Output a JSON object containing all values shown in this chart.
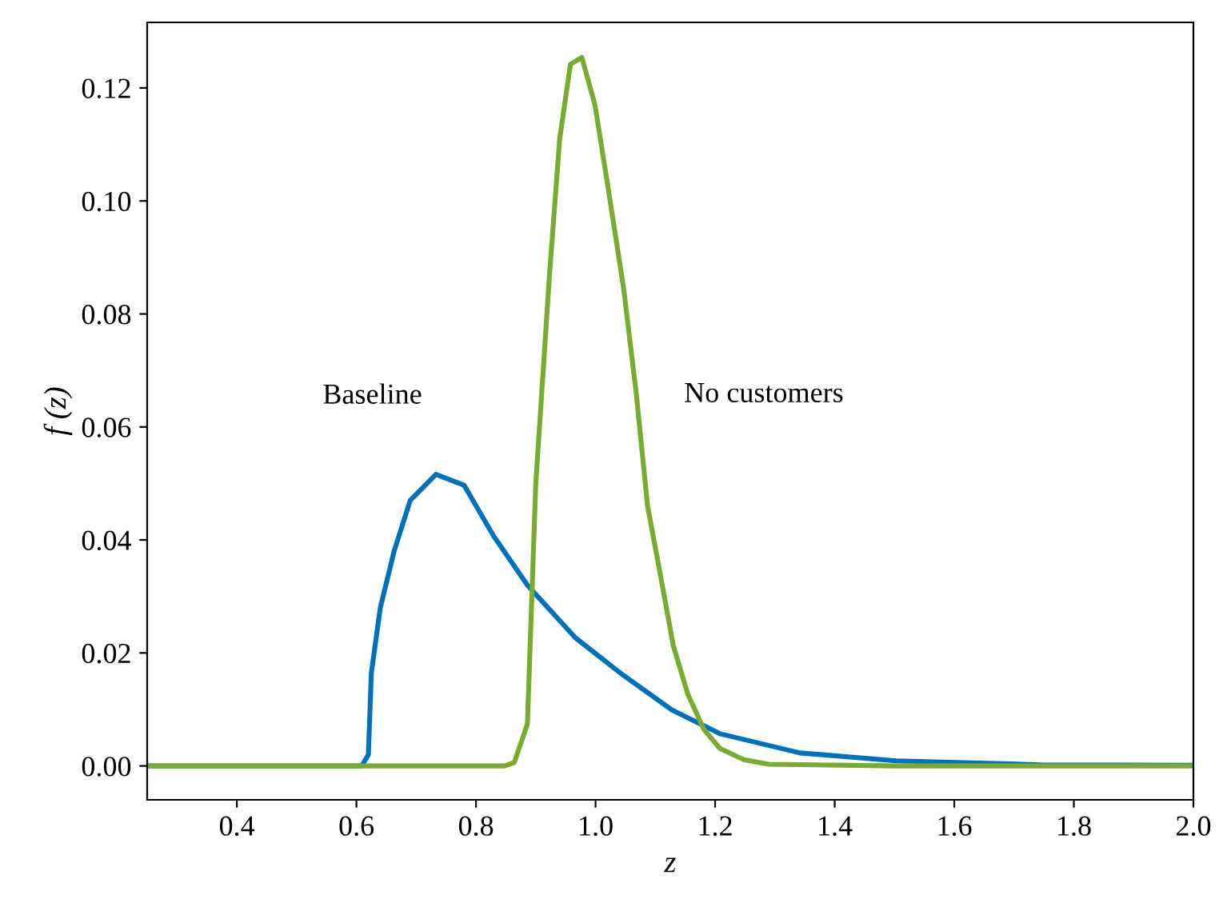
{
  "chart_data": {
    "type": "line",
    "xlabel": "z",
    "ylabel": "f (z)",
    "xlim": [
      0.25,
      2.0
    ],
    "ylim": [
      -0.006,
      0.1316
    ],
    "xticks": [
      {
        "value": 0.4,
        "label": "0.4"
      },
      {
        "value": 0.6,
        "label": "0.6"
      },
      {
        "value": 0.8,
        "label": "0.8"
      },
      {
        "value": 1.0,
        "label": "1.0"
      },
      {
        "value": 1.2,
        "label": "1.2"
      },
      {
        "value": 1.4,
        "label": "1.4"
      },
      {
        "value": 1.6,
        "label": "1.6"
      },
      {
        "value": 1.8,
        "label": "1.8"
      },
      {
        "value": 2.0,
        "label": "2.0"
      }
    ],
    "yticks": [
      {
        "value": 0.0,
        "label": "0.00"
      },
      {
        "value": 0.02,
        "label": "0.02"
      },
      {
        "value": 0.04,
        "label": "0.04"
      },
      {
        "value": 0.06,
        "label": "0.06"
      },
      {
        "value": 0.08,
        "label": "0.08"
      },
      {
        "value": 0.1,
        "label": "0.10"
      },
      {
        "value": 0.12,
        "label": "0.12"
      }
    ],
    "grid": false,
    "legend": false,
    "marker": "none",
    "line_style": "solid",
    "series": [
      {
        "name": "Baseline",
        "color": "#0072bd",
        "x": [
          0.25,
          0.5,
          0.609,
          0.62,
          0.625,
          0.64,
          0.663,
          0.69,
          0.733,
          0.78,
          0.83,
          0.886,
          0.966,
          1.047,
          1.128,
          1.208,
          1.342,
          1.503,
          1.745,
          2.0
        ],
        "values": [
          0.0,
          0.0,
          0.0,
          0.002,
          0.0165,
          0.028,
          0.038,
          0.047,
          0.0516,
          0.0497,
          0.0406,
          0.032,
          0.0227,
          0.016,
          0.0099,
          0.0057,
          0.0023,
          0.0009,
          0.0002,
          0.0001
        ]
      },
      {
        "name": "No customers",
        "color": "#77ac30",
        "x": [
          0.25,
          0.6,
          0.848,
          0.864,
          0.886,
          0.9,
          0.923,
          0.94,
          0.958,
          0.977,
          0.999,
          1.02,
          1.047,
          1.068,
          1.087,
          1.109,
          1.13,
          1.154,
          1.181,
          1.208,
          1.248,
          1.289,
          1.5,
          2.0
        ],
        "values": [
          0.0,
          0.0,
          0.0,
          0.0006,
          0.0074,
          0.05,
          0.087,
          0.111,
          0.1242,
          0.1254,
          0.117,
          0.103,
          0.0845,
          0.066,
          0.046,
          0.0335,
          0.0213,
          0.0128,
          0.0065,
          0.0031,
          0.0011,
          0.0003,
          0.0,
          0.0
        ]
      }
    ]
  }
}
